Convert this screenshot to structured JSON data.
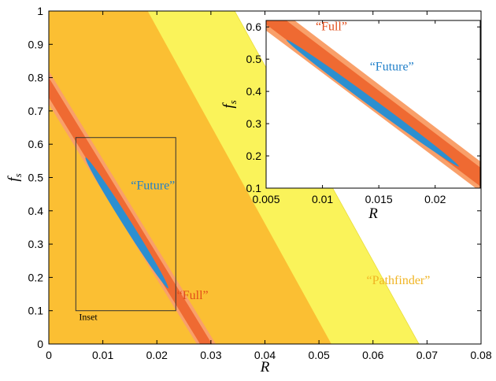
{
  "chart_data": [
    {
      "type": "area",
      "xlabel": "R",
      "ylabel": "f",
      "ylabel_sub": "s",
      "xlim": [
        0,
        0.08
      ],
      "ylim": [
        0,
        1
      ],
      "xticks": [
        0,
        0.01,
        0.02,
        0.03,
        0.04,
        0.05,
        0.06,
        0.07,
        0.08
      ],
      "xtick_labels": [
        "0",
        "0.01",
        "0.02",
        "0.03",
        "0.04",
        "0.05",
        "0.06",
        "0.07",
        "0.08"
      ],
      "yticks": [
        0,
        0.1,
        0.2,
        0.3,
        0.4,
        0.5,
        0.6,
        0.7,
        0.8,
        0.9,
        1
      ],
      "ytick_labels": [
        "0",
        "0.1",
        "0.2",
        "0.3",
        "0.4",
        "0.5",
        "0.6",
        "0.7",
        "0.8",
        "0.9",
        "1"
      ],
      "grid": false,
      "regions": [
        {
          "label": "“Pathfinder”",
          "color": "#faf35a",
          "outer": [
            [
              0,
              1
            ],
            [
              0.0344,
              1
            ],
            [
              0.0685,
              0
            ],
            [
              0,
              0
            ]
          ]
        },
        {
          "label": "",
          "color": "#fbbf33",
          "outer": [
            [
              0,
              1
            ],
            [
              0.0183,
              1
            ],
            [
              0.0523,
              0
            ],
            [
              0,
              0
            ]
          ]
        },
        {
          "label": "“Full”",
          "color": "#f9a06a",
          "outer": [
            [
              0,
              0.82
            ],
            [
              0.0309,
              0
            ],
            [
              0.0274,
              0
            ],
            [
              0,
              0.72
            ]
          ]
        },
        {
          "label": "",
          "color": "#ef6a32",
          "outer": [
            [
              0,
              0.8
            ],
            [
              0.0302,
              0
            ],
            [
              0.028,
              0
            ],
            [
              0,
              0.74
            ]
          ]
        },
        {
          "label": "“Future”",
          "color": "#2c8fd0",
          "ellipse": {
            "start": [
              0.0068,
              0.56
            ],
            "end": [
              0.0221,
              0.167
            ],
            "half_width_f": 0.012
          }
        }
      ],
      "annotations": [
        {
          "text": "“Future”",
          "x": 0.0152,
          "y": 0.465,
          "color": "#1f7fc9"
        },
        {
          "text": "“Full”",
          "x": 0.0237,
          "y": 0.135,
          "color": "#e24d1a"
        },
        {
          "text": "“Pathfinder”",
          "x": 0.0588,
          "y": 0.18,
          "color": "#f0b423"
        },
        {
          "text": "Inset",
          "x": 0.0056,
          "y": 0.072,
          "color": "#000000"
        }
      ],
      "inset_box": {
        "x": [
          0.005,
          0.0235
        ],
        "y": [
          0.1,
          0.62
        ]
      }
    },
    {
      "type": "area",
      "xlabel": "R",
      "ylabel": "f",
      "ylabel_sub": "s",
      "xlim": [
        0.005,
        0.024
      ],
      "ylim": [
        0.1,
        0.62
      ],
      "xticks": [
        0.005,
        0.01,
        0.015,
        0.02
      ],
      "xtick_labels": [
        "0.005",
        "0.01",
        "0.015",
        "0.02"
      ],
      "yticks": [
        0.1,
        0.2,
        0.3,
        0.4,
        0.5,
        0.6
      ],
      "ytick_labels": [
        "0.1",
        "0.2",
        "0.3",
        "0.4",
        "0.5",
        "0.6"
      ],
      "grid": false,
      "annotations": [
        {
          "text": "“Full”",
          "x": 0.0094,
          "y": 0.59,
          "color": "#e24d1a"
        },
        {
          "text": "“Future”",
          "x": 0.0142,
          "y": 0.465,
          "color": "#1f7fc9"
        }
      ]
    }
  ]
}
